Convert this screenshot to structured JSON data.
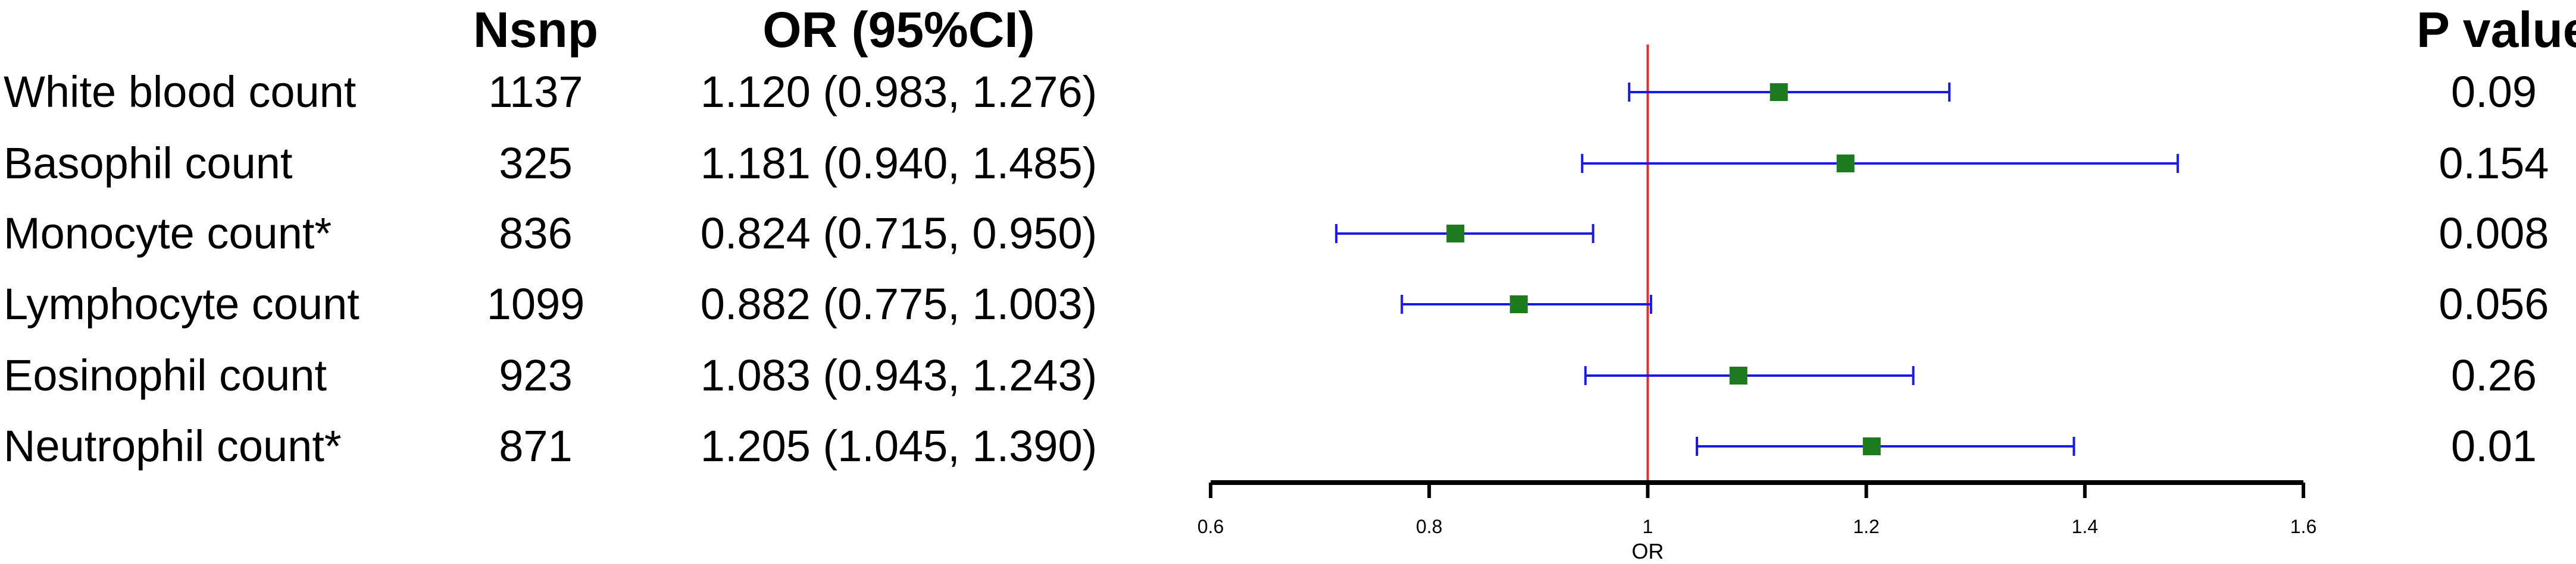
{
  "headers": {
    "nsnp": "Nsnp",
    "or": "OR (95%CI)",
    "p": "P value"
  },
  "rows": [
    {
      "label": "White blood count",
      "nsnp": "1137",
      "or_text": "1.120 (0.983, 1.276)",
      "p": "0.09"
    },
    {
      "label": "Basophil count",
      "nsnp": "325",
      "or_text": "1.181 (0.940, 1.485)",
      "p": "0.154"
    },
    {
      "label": "Monocyte count*",
      "nsnp": "836",
      "or_text": "0.824 (0.715, 0.950)",
      "p": "0.008"
    },
    {
      "label": "Lymphocyte count",
      "nsnp": "1099",
      "or_text": "0.882 (0.775, 1.003)",
      "p": "0.056"
    },
    {
      "label": "Eosinophil count",
      "nsnp": "923",
      "or_text": "1.083 (0.943, 1.243)",
      "p": "0.26"
    },
    {
      "label": "Neutrophil count*",
      "nsnp": "871",
      "or_text": "1.205 (1.045, 1.390)",
      "p": "0.01"
    }
  ],
  "chart_data": {
    "type": "scatter",
    "subtype": "forest",
    "xlabel": "OR",
    "xlim": [
      0.6,
      1.6
    ],
    "xticks": [
      "0.6",
      "0.8",
      "1",
      "1.2",
      "1.4",
      "1.6"
    ],
    "reference_line": 1,
    "grid": false,
    "points": [
      {
        "category": "White blood count",
        "or": 1.12,
        "lo": 0.983,
        "hi": 1.276
      },
      {
        "category": "Basophil count",
        "or": 1.181,
        "lo": 0.94,
        "hi": 1.485
      },
      {
        "category": "Monocyte count*",
        "or": 0.824,
        "lo": 0.715,
        "hi": 0.95
      },
      {
        "category": "Lymphocyte count",
        "or": 0.882,
        "lo": 0.775,
        "hi": 1.003
      },
      {
        "category": "Eosinophil count",
        "or": 1.083,
        "lo": 0.943,
        "hi": 1.243
      },
      {
        "category": "Neutrophil count*",
        "or": 1.205,
        "lo": 1.045,
        "hi": 1.39
      }
    ],
    "colors": {
      "point": "#1e7a1e",
      "interval": "#1a1ae6",
      "reference": "#e03030",
      "axis": "#000000"
    }
  }
}
